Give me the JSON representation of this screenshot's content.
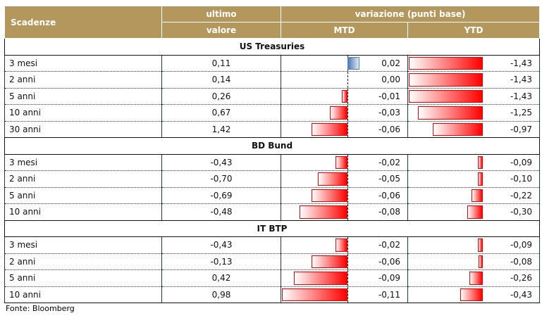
{
  "header": {
    "scadenze": "Scadenze",
    "ultimo1": "ultimo",
    "ultimo2": "valore",
    "variazione": "variazione (punti base)",
    "mtd": "MTD",
    "ytd": "YTD"
  },
  "sections": [
    {
      "name": "US Treasuries",
      "rows": [
        {
          "label": "3 mesi",
          "value": "0,11",
          "mtd": "0,02",
          "ytd": "-1,43"
        },
        {
          "label": "2 anni",
          "value": "0,14",
          "mtd": "0,00",
          "ytd": "-1,43"
        },
        {
          "label": "5 anni",
          "value": "0,26",
          "mtd": "-0,01",
          "ytd": "-1,43"
        },
        {
          "label": "10 anni",
          "value": "0,67",
          "mtd": "-0,03",
          "ytd": "-1,25"
        },
        {
          "label": "30 anni",
          "value": "1,42",
          "mtd": "-0,06",
          "ytd": "-0,97"
        }
      ]
    },
    {
      "name": "BD Bund",
      "rows": [
        {
          "label": "3 mesi",
          "value": "-0,43",
          "mtd": "-0,02",
          "ytd": "-0,09"
        },
        {
          "label": "2 anni",
          "value": "-0,70",
          "mtd": "-0,05",
          "ytd": "-0,10"
        },
        {
          "label": "5 anni",
          "value": "-0,69",
          "mtd": "-0,06",
          "ytd": "-0,22"
        },
        {
          "label": "10 anni",
          "value": "-0,48",
          "mtd": "-0,08",
          "ytd": "-0,30"
        }
      ]
    },
    {
      "name": "IT BTP",
      "rows": [
        {
          "label": "3 mesi",
          "value": "-0,43",
          "mtd": "-0,02",
          "ytd": "-0,09"
        },
        {
          "label": "2 anni",
          "value": "-0,13",
          "mtd": "-0,06",
          "ytd": "-0,08"
        },
        {
          "label": "5 anni",
          "value": "0,42",
          "mtd": "-0,09",
          "ytd": "-0,26"
        },
        {
          "label": "10 anni",
          "value": "0,98",
          "mtd": "-0,11",
          "ytd": "-0,43"
        }
      ]
    }
  ],
  "source": "Fonte: Bloomberg"
}
